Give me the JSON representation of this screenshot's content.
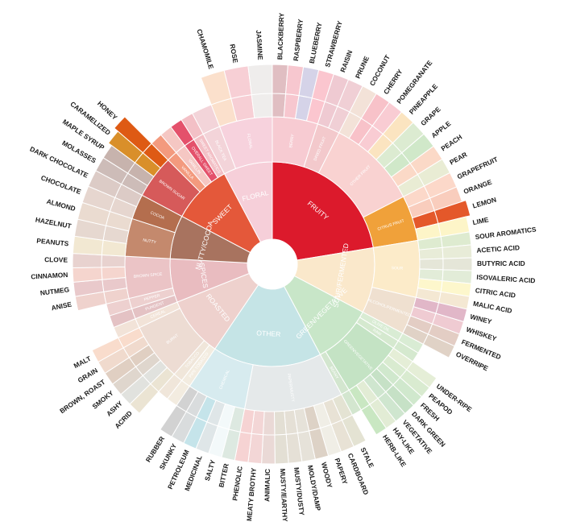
{
  "chart_data": {
    "type": "sunburst",
    "palette": {
      "fruity": "#dc1a2c",
      "sweet": "#e4583a",
      "nutty": "#a8735f",
      "spices": "#e9bcc0",
      "roasted": "#eed1cd",
      "other": "#c5e4e6",
      "green": "#c8e6c8",
      "sour": "#fae8cb",
      "floral": "#f6cfd9",
      "citrus": "#f0a13a"
    },
    "categories": [
      {
        "name": "FRUITY",
        "color": "#dc1a2c",
        "span": 26,
        "children": [
          {
            "name": "BERRY",
            "color": "#f7cbd2",
            "leaves": [
              {
                "name": "BLACKBERRY",
                "color": "#e0bec2"
              },
              {
                "name": "RASPBERRY",
                "color": "#f7c7cf"
              },
              {
                "name": "BLUEBERRY",
                "color": "#d5d3e8"
              },
              {
                "name": "STRAWBERRY",
                "color": "#fbc6cf"
              }
            ]
          },
          {
            "name": "DRIED FRUIT",
            "color": "#f3c9cc",
            "leaves": [
              {
                "name": "RAISIN",
                "color": "#efcad2"
              },
              {
                "name": "PRUNE",
                "color": "#f0cfd5"
              }
            ]
          },
          {
            "name": "OTHER FRUIT",
            "color": "#f9d2d1",
            "leaves": [
              {
                "name": "COCONUT",
                "color": "#f3e2d8"
              },
              {
                "name": "CHERRY",
                "color": "#f8c2c9"
              },
              {
                "name": "POMEGRANATE",
                "color": "#f9ccd3"
              },
              {
                "name": "PINEAPPLE",
                "color": "#fbe4c0"
              },
              {
                "name": "GRAPE",
                "color": "#dcebd1"
              },
              {
                "name": "APPLE",
                "color": "#d0e8c9"
              },
              {
                "name": "PEACH",
                "color": "#fbd9c7"
              },
              {
                "name": "PEAR",
                "color": "#e9ecd4"
              }
            ]
          },
          {
            "name": "CITRUS FRUIT",
            "color": "#f0a13a",
            "leaves": [
              {
                "name": "GRAPEFRUIT",
                "color": "#fcd8c9"
              },
              {
                "name": "ORANGE",
                "color": "#f9cdbd"
              },
              {
                "name": "LEMON",
                "color": "#e4582a",
                "ext": 5
              },
              {
                "name": "LIME",
                "color": "#fdf5c8"
              }
            ]
          }
        ]
      },
      {
        "name": "SOUR/FERMENTED",
        "color": "#fae8cb",
        "span": 12,
        "children": [
          {
            "name": "SOUR",
            "color": "#fcebc9",
            "leaves": [
              {
                "name": "SOUR AROMATICS",
                "color": "#deebd0"
              },
              {
                "name": "ACETIC ACID",
                "color": "#e8ecd8"
              },
              {
                "name": "BUTYRIC ACID",
                "color": "#e5e6d8"
              },
              {
                "name": "ISOVALERIC ACID",
                "color": "#e2ecd8"
              },
              {
                "name": "CITRIC ACID",
                "color": "#fdf7cc"
              },
              {
                "name": "MALIC ACID",
                "color": "#f4e8d3"
              }
            ]
          },
          {
            "name": "ALCOHOL/FERMENTED",
            "color": "#efe0d0",
            "leaves": [
              {
                "name": "WINEY",
                "color": "#e1b7c8"
              },
              {
                "name": "WHISKEY",
                "color": "#efcbd2"
              },
              {
                "name": "FERMENTED",
                "color": "#e3cdc4"
              },
              {
                "name": "OVERRIPE",
                "color": "#e0d2c6"
              }
            ]
          }
        ]
      },
      {
        "name": "GREEN/VEGETATIVE",
        "color": "#c8e6c8",
        "span": 11,
        "children": [
          {
            "name": "OLIVE OIL",
            "color": "#d9ecd4",
            "leaves": []
          },
          {
            "name": "RAW",
            "color": "#d5e9cf",
            "leaves": []
          },
          {
            "name": "GREEN/VEGETATIVE",
            "color": "#c4e3c4",
            "leaves": [
              {
                "name": "UNDER-RIPE",
                "color": "#e5eed7"
              },
              {
                "name": "PEAPOD",
                "color": "#d9ebd0"
              },
              {
                "name": "FRESH",
                "color": "#d0e8cd"
              },
              {
                "name": "DARK GREEN",
                "color": "#c6e1c6"
              },
              {
                "name": "VEGETATIVE",
                "color": "#cfe6cf"
              },
              {
                "name": "HAY-LIKE",
                "color": "#e2ecd5"
              },
              {
                "name": "HERB-LIKE",
                "color": "#c9e7c2"
              }
            ]
          },
          {
            "name": "BEANY",
            "color": "#d3e6cf",
            "leaves": []
          }
        ]
      },
      {
        "name": "OTHER",
        "color": "#c5e4e6",
        "span": 20,
        "children": [
          {
            "name": "PAPER/MUSTY",
            "color": "#e5e9ea",
            "leaves": [
              {
                "name": "STALE",
                "color": "#e4e3d3"
              },
              {
                "name": "CARDBOARD",
                "color": "#e8e2d5"
              },
              {
                "name": "PAPERY",
                "color": "#f0eee6"
              },
              {
                "name": "WOODY",
                "color": "#ddd2c6"
              },
              {
                "name": "MOLDY/DAMP",
                "color": "#e6e2d9"
              },
              {
                "name": "MUSTY/DUSTY",
                "color": "#e5e0d6"
              },
              {
                "name": "MUSTY/EARTHY",
                "color": "#e3dfd4"
              },
              {
                "name": "ANIMALIC",
                "color": "#ead9d6"
              },
              {
                "name": "MEATY BROTHY",
                "color": "#f3d6d6"
              },
              {
                "name": "PHENOLIC",
                "color": "#f6d3d3"
              }
            ]
          },
          {
            "name": "CHEMICAL",
            "color": "#d7ebef",
            "leaves": [
              {
                "name": "BITTER",
                "color": "#dde9e1"
              },
              {
                "name": "SALTY",
                "color": "#f3f9fa"
              },
              {
                "name": "MEDICINAL",
                "color": "#dfe6e8"
              },
              {
                "name": "PETROLEUM",
                "color": "#c5e4ea"
              },
              {
                "name": "SKUNKY",
                "color": "#d9dcdd"
              },
              {
                "name": "RUBBER",
                "color": "#d2d2d2"
              }
            ]
          }
        ]
      },
      {
        "name": "ROASTED",
        "color": "#eed1cd",
        "span": 11,
        "children": [
          {
            "name": "PIPE TOBACCO",
            "color": "#f3ece0",
            "leaves": []
          },
          {
            "name": "TOBACCO",
            "color": "#f0e6da",
            "leaves": []
          },
          {
            "name": "BURNT",
            "color": "#eddcd3",
            "leaves": [
              {
                "name": "ACRID",
                "color": "#ebe4d3"
              },
              {
                "name": "ASHY",
                "color": "#e1e2de"
              },
              {
                "name": "SMOKY",
                "color": "#dfd6cd"
              },
              {
                "name": "BROWN, ROAST",
                "color": "#e0cfc2"
              },
              {
                "name": "GRAIN",
                "color": "#f0dacd"
              },
              {
                "name": "MALT",
                "color": "#f9dccc"
              }
            ]
          },
          {
            "name": "CEREAL",
            "color": "#f2e3d8",
            "leaves": []
          }
        ]
      },
      {
        "name": "SPICES",
        "color": "#e9bcc0",
        "span": 8,
        "children": [
          {
            "name": "PUNGENT",
            "color": "#e4c2c4",
            "leaves": []
          },
          {
            "name": "PEPPER",
            "color": "#edd0cf",
            "leaves": []
          },
          {
            "name": "BROWN SPICE",
            "color": "#ebc4c6",
            "leaves": [
              {
                "name": "ANISE",
                "color": "#efd2cd"
              },
              {
                "name": "NUTMEG",
                "color": "#e9c9cb"
              },
              {
                "name": "CINNAMON",
                "color": "#f5d5ce"
              },
              {
                "name": "CLOVE",
                "color": "#e8d2cf"
              }
            ]
          }
        ]
      },
      {
        "name": "NUTTY/COCOA",
        "color": "#a8735f",
        "span": 8,
        "children": [
          {
            "name": "NUTTY",
            "color": "#c4896d",
            "leaves": [
              {
                "name": "PEANUTS",
                "color": "#f2e8d2"
              },
              {
                "name": "HAZELNUT",
                "color": "#e6d8d0"
              },
              {
                "name": "ALMOND",
                "color": "#eadbd0"
              }
            ]
          },
          {
            "name": "COCOA",
            "color": "#b46e4e",
            "leaves": [
              {
                "name": "CHOCOLATE",
                "color": "#e6d6cf"
              },
              {
                "name": "DARK CHOCOLATE",
                "color": "#dccbc6"
              }
            ]
          }
        ]
      },
      {
        "name": "SWEET",
        "color": "#e4583a",
        "span": 11,
        "children": [
          {
            "name": "BROWN SUGAR",
            "color": "#d65a5a",
            "leaves": [
              {
                "name": "MOLASSES",
                "color": "#cdbcb8"
              },
              {
                "name": "MAPLE SYRUP",
                "color": "#c7b3ad"
              },
              {
                "name": "CARAMELIZED",
                "color": "#d98f2a",
                "ext": 5
              },
              {
                "name": "HONEY",
                "color": "#de5a14",
                "ext": 11
              }
            ]
          },
          {
            "name": "VANILLA",
            "color": "#f39a7e",
            "leaves": []
          },
          {
            "name": "VANILLIN",
            "color": "#f5c7c3",
            "leaves": []
          },
          {
            "name": "OVERALL SWEET",
            "color": "#e4516b",
            "leaves": []
          },
          {
            "name": "SWEET AROMATICS",
            "color": "#f3c0c6",
            "leaves": []
          }
        ]
      },
      {
        "name": "FLORAL",
        "color": "#f6cfd9",
        "span": 9,
        "children": [
          {
            "name": "BLACK TEA",
            "color": "#f3d4d9",
            "leaves": []
          },
          {
            "name": "FLORAL",
            "color": "#f7d2dd",
            "leaves": [
              {
                "name": "CHAMOMILE",
                "color": "#fbe0cc"
              },
              {
                "name": "ROSE",
                "color": "#f7cfd5"
              },
              {
                "name": "JASMINE",
                "color": "#efedec"
              }
            ]
          }
        ]
      }
    ]
  }
}
